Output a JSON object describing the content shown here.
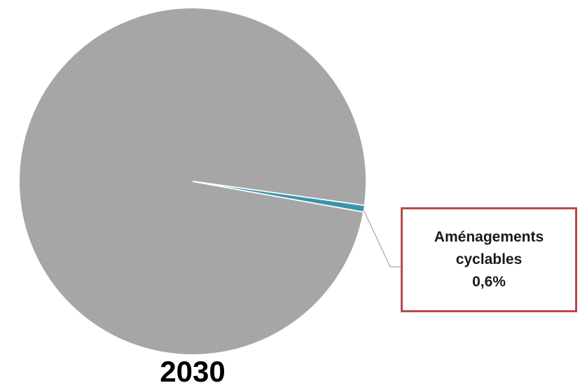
{
  "chart_data": {
    "type": "pie",
    "title": "2030",
    "slices": [
      {
        "label": "",
        "value": 99.4,
        "color": "#a6a6a6"
      },
      {
        "label": "Aménagements cyclables",
        "value": 0.6,
        "display": "0,6%",
        "color": "#3a93ad"
      }
    ],
    "callout": {
      "line1": "Aménagements",
      "line2": "cyclables",
      "line3": "0,6%",
      "border_color": "#b84a4a"
    },
    "legend": "none"
  }
}
